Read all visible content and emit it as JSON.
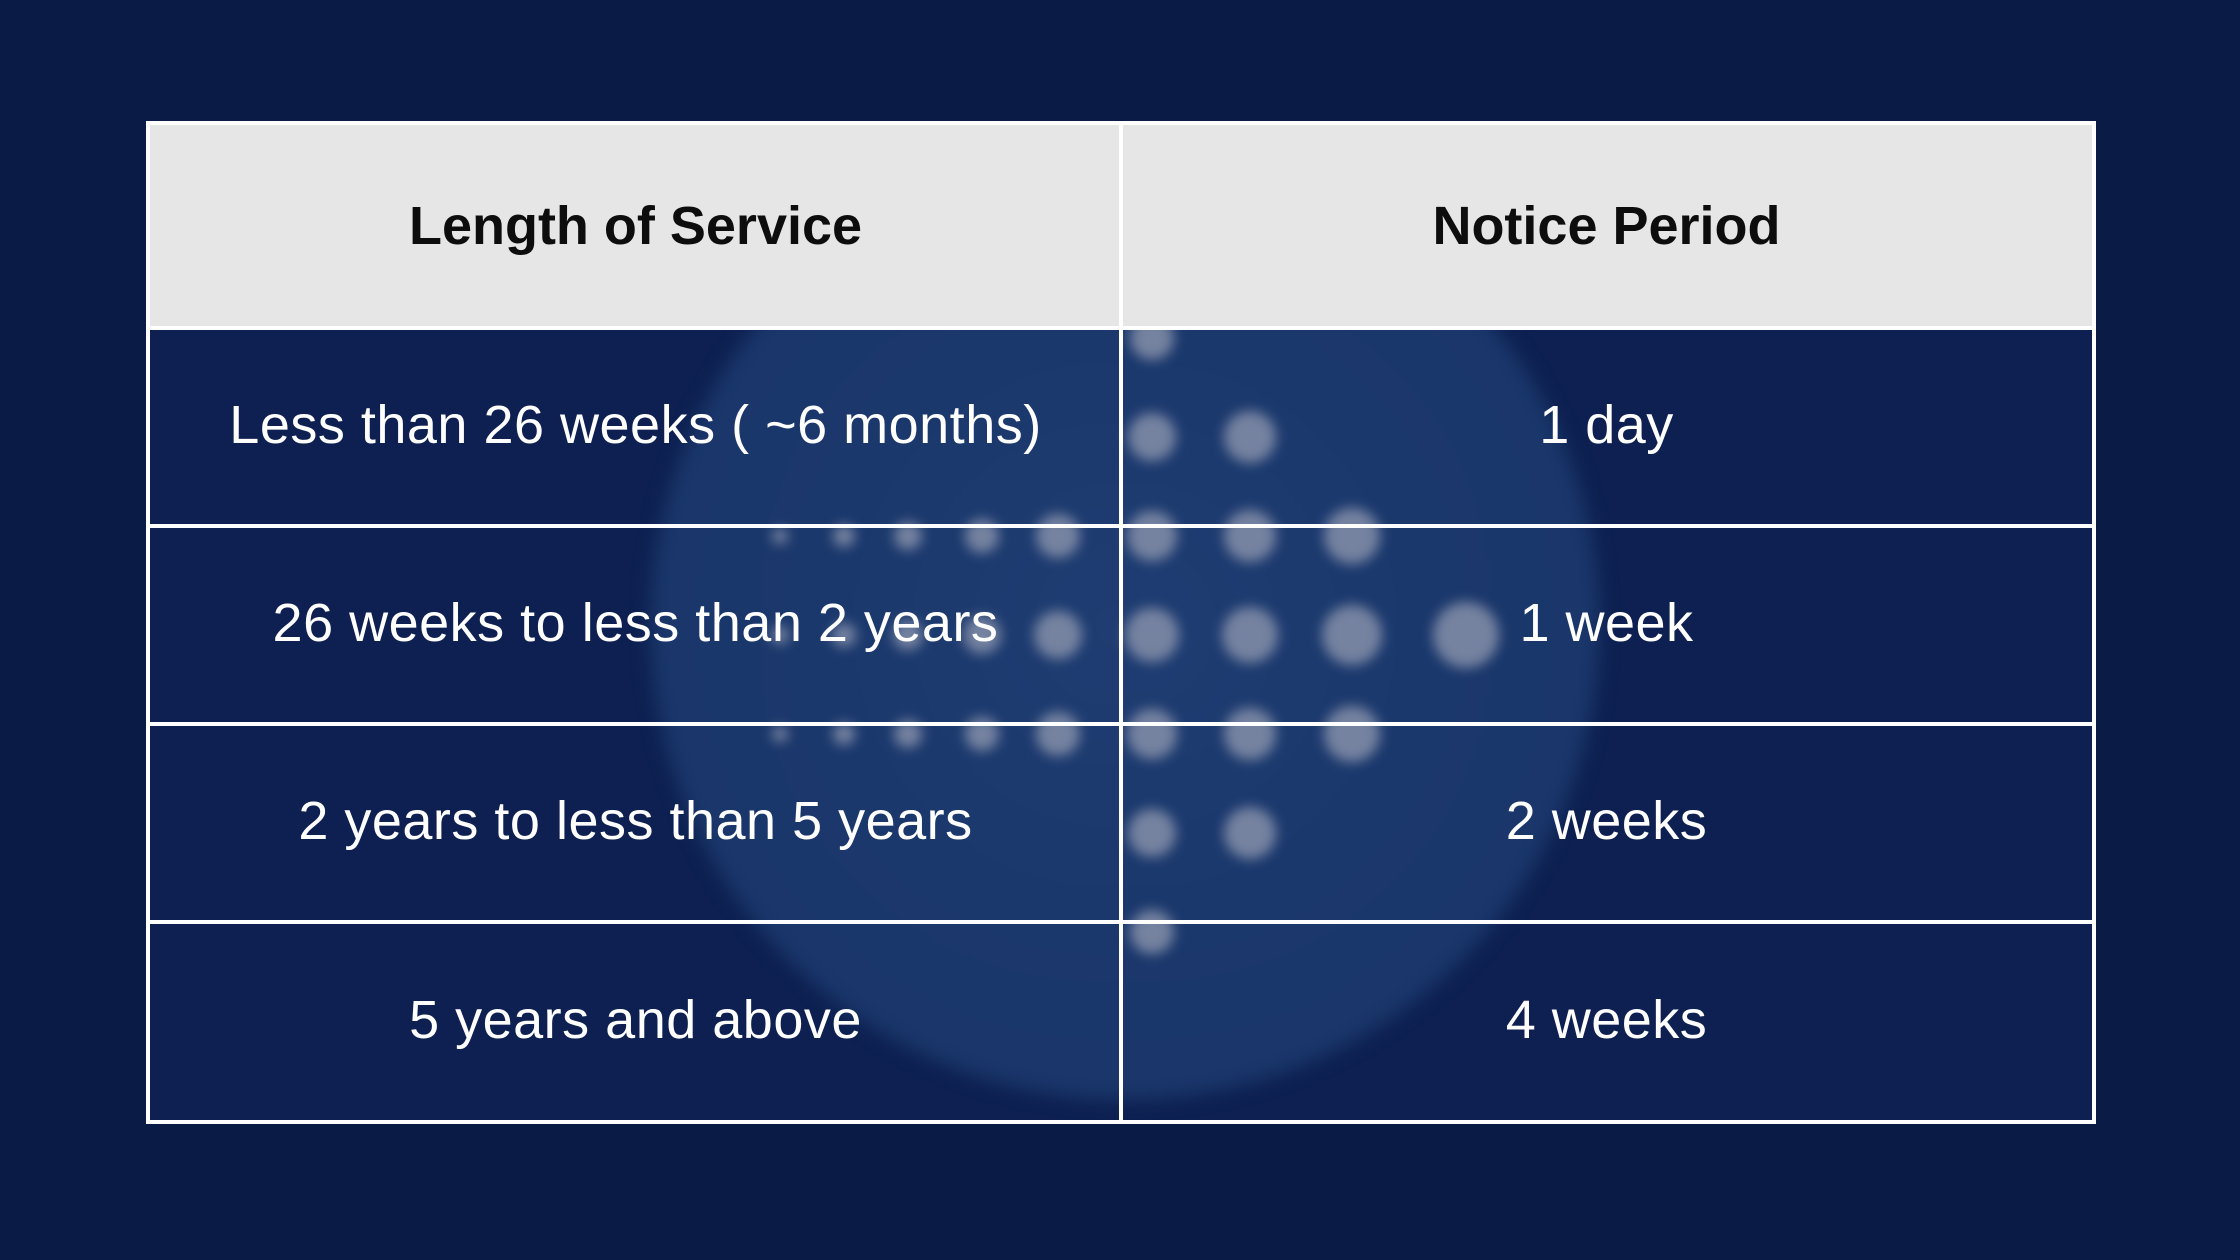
{
  "slide": {
    "table": {
      "headers": [
        "Length of Service",
        "Notice Period"
      ],
      "rows": [
        {
          "cells": [
            "Less than 26 weeks ( ~6 months)",
            "1 day"
          ]
        },
        {
          "cells": [
            "26 weeks to less than 2 years",
            "1 week"
          ]
        },
        {
          "cells": [
            "2 years to less than 5 years",
            "2 weeks"
          ]
        },
        {
          "cells": [
            "5 years and above",
            "4 weeks"
          ]
        }
      ]
    },
    "colors": {
      "page_bg": "#0a1b46",
      "cell_bg": "#0d2051",
      "header_bg": "#e6e6e6",
      "header_text": "#0d0d0d",
      "text": "#ffffff",
      "border": "#ffffff",
      "watermark_circle": "#1b386c",
      "watermark_dot": "#7d89a5"
    }
  }
}
